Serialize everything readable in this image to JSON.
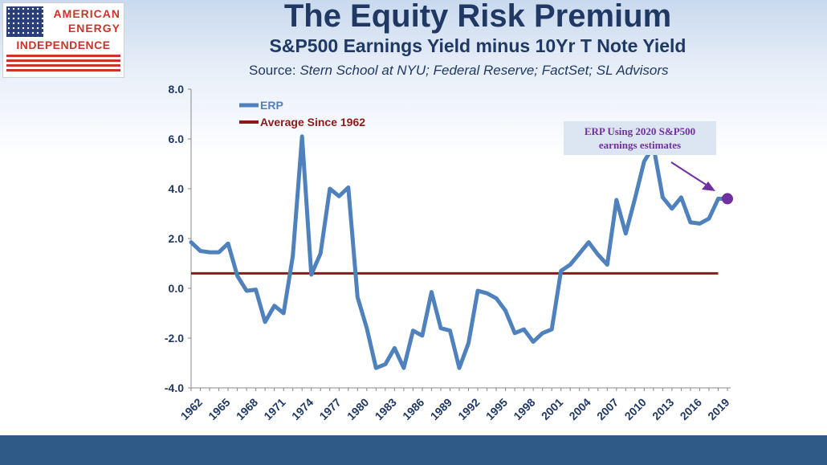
{
  "logo": {
    "line1": "AMERICAN",
    "line2": "ENERGY",
    "line3": "INDEPENDENCE"
  },
  "header": {
    "title": "The Equity Risk Premium",
    "subtitle": "S&P500 Earnings Yield minus 10Yr T Note Yield",
    "source_label": "Source:",
    "source_text": "Stern School at NYU; Federal Reserve; FactSet; SL Advisors"
  },
  "colors": {
    "erp_line": "#4f81bd",
    "average_line": "#8b1a1a",
    "annotation_text": "#7030a0",
    "annotation_box": "#dce6f2",
    "highlight_point": "#7030a0",
    "axis_text": "#1f3864",
    "footer": "#2f5a87"
  },
  "chart_data": {
    "type": "line",
    "x": [
      1962,
      1963,
      1964,
      1965,
      1966,
      1967,
      1968,
      1969,
      1970,
      1971,
      1972,
      1973,
      1974,
      1975,
      1976,
      1977,
      1978,
      1979,
      1980,
      1981,
      1982,
      1983,
      1984,
      1985,
      1986,
      1987,
      1988,
      1989,
      1990,
      1991,
      1992,
      1993,
      1994,
      1995,
      1996,
      1997,
      1998,
      1999,
      2000,
      2001,
      2002,
      2003,
      2004,
      2005,
      2006,
      2007,
      2008,
      2009,
      2010,
      2011,
      2012,
      2013,
      2014,
      2015,
      2016,
      2017,
      2018,
      2019,
      2020
    ],
    "series": [
      {
        "name": "ERP",
        "values": [
          1.85,
          1.5,
          1.45,
          1.45,
          1.8,
          0.5,
          -0.1,
          -0.05,
          -1.35,
          -0.7,
          -1.0,
          1.3,
          6.1,
          0.55,
          1.4,
          4.0,
          3.7,
          4.05,
          -0.35,
          -1.6,
          -3.2,
          -3.05,
          -2.4,
          -3.2,
          -1.7,
          -1.9,
          -0.15,
          -1.6,
          -1.7,
          -3.2,
          -2.2,
          -0.1,
          -0.2,
          -0.4,
          -0.9,
          -1.8,
          -1.65,
          -2.15,
          -1.8,
          -1.65,
          0.7,
          0.95,
          1.4,
          1.85,
          1.35,
          0.95,
          3.55,
          2.2,
          3.6,
          5.1,
          5.7,
          3.65,
          3.2,
          3.65,
          2.65,
          2.6,
          2.8,
          3.6,
          3.6
        ]
      },
      {
        "name": "Average Since 1962",
        "values": [
          0.6,
          0.6,
          0.6,
          0.6,
          0.6,
          0.6,
          0.6,
          0.6,
          0.6,
          0.6,
          0.6,
          0.6,
          0.6,
          0.6,
          0.6,
          0.6,
          0.6,
          0.6,
          0.6,
          0.6,
          0.6,
          0.6,
          0.6,
          0.6,
          0.6,
          0.6,
          0.6,
          0.6,
          0.6,
          0.6,
          0.6,
          0.6,
          0.6,
          0.6,
          0.6,
          0.6,
          0.6,
          0.6,
          0.6,
          0.6,
          0.6,
          0.6,
          0.6,
          0.6,
          0.6,
          0.6,
          0.6,
          0.6,
          0.6,
          0.6,
          0.6,
          0.6,
          0.6,
          0.6,
          0.6,
          0.6,
          0.6,
          0.6,
          0.6
        ]
      }
    ],
    "x_tick_labels": [
      "1962",
      "1965",
      "1968",
      "1971",
      "1974",
      "1977",
      "1980",
      "1983",
      "1986",
      "1989",
      "1992",
      "1995",
      "1998",
      "2001",
      "2004",
      "2007",
      "2010",
      "2013",
      "2016",
      "2019"
    ],
    "y_tick_labels": [
      "8.0",
      "6.0",
      "4.0",
      "2.0",
      "0.0",
      "-2.0",
      "-4.0"
    ],
    "y_ticks": [
      8,
      6,
      4,
      2,
      0,
      -2,
      -4
    ],
    "ylim": [
      -4,
      8
    ],
    "xlim": [
      1962,
      2020
    ],
    "grid": false,
    "legend_position": "top-left",
    "highlight_point": {
      "x": 2020,
      "y": 3.6
    },
    "annotation": "ERP Using 2020 S&P500 earnings estimates",
    "annotation_lines": [
      "ERP Using 2020 S&P500",
      "earnings estimates"
    ]
  }
}
